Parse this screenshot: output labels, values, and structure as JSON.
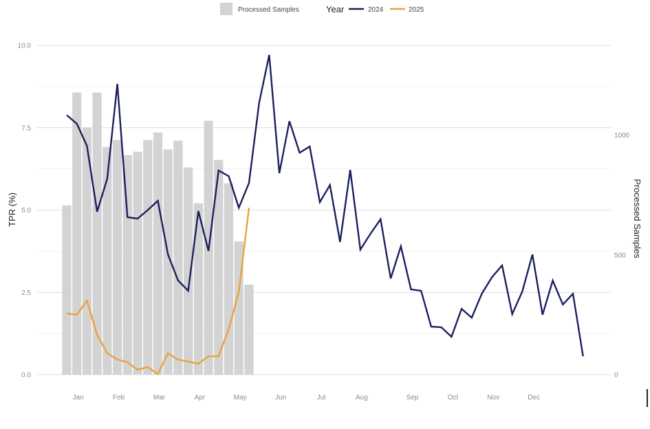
{
  "chart_data": {
    "type": "line",
    "title": "",
    "xlabel": "",
    "ylabel": "TPR (%)",
    "ylabel_right": "Processed Samples",
    "ylim": [
      0,
      10
    ],
    "ylim_right": [
      0,
      1375
    ],
    "yticks": [
      "0.0",
      "2.5",
      "5.0",
      "7.5",
      "10.0"
    ],
    "yticks_values": [
      0,
      2.5,
      5,
      7.5,
      10
    ],
    "yticks_right": [
      "0",
      "500",
      "1000"
    ],
    "yticks_right_values": [
      0,
      500,
      1000
    ],
    "grid": true,
    "legend": {
      "position": "top",
      "bar_label": "Processed Samples",
      "group_title": "Year",
      "entries": [
        {
          "name": "2024",
          "color": "#1b1f5e"
        },
        {
          "name": "2025",
          "color": "#e8a23c"
        }
      ]
    },
    "months": [
      "Jan",
      "Feb",
      "Mar",
      "Apr",
      "May",
      "Jun",
      "Jul",
      "Aug",
      "Sep",
      "Oct",
      "Nov",
      "Dec"
    ],
    "month_week_positions": [
      2,
      6,
      10,
      14,
      18,
      22,
      26,
      30,
      35,
      39,
      43,
      47
    ],
    "x_unit": "week",
    "bars": {
      "name": "Processed Samples",
      "axis": "right",
      "color": "#d3d3d3",
      "weeks": [
        1,
        2,
        3,
        4,
        5,
        6,
        7,
        8,
        9,
        10,
        11,
        12,
        13,
        14,
        15,
        16,
        17,
        18,
        19
      ],
      "values": [
        707,
        1178,
        1032,
        1178,
        951,
        980,
        917,
        931,
        980,
        1011,
        940,
        977,
        865,
        716,
        1060,
        897,
        799,
        557,
        376
      ]
    },
    "series": [
      {
        "name": "2024",
        "axis": "left",
        "color": "#1b1f5e",
        "weeks": [
          1,
          2,
          3,
          4,
          5,
          6,
          7,
          8,
          9,
          10,
          11,
          12,
          13,
          14,
          15,
          16,
          17,
          18,
          19,
          20,
          21,
          22,
          23,
          24,
          25,
          26,
          27,
          28,
          29,
          30,
          31,
          32,
          33,
          34,
          35,
          36,
          37,
          38,
          39,
          40,
          41,
          42,
          43,
          44,
          45,
          46,
          47,
          48,
          49,
          50,
          51,
          52
        ],
        "values": [
          7.88,
          7.62,
          6.95,
          4.95,
          5.95,
          8.83,
          4.78,
          4.74,
          5.0,
          5.28,
          3.65,
          2.86,
          2.55,
          4.97,
          3.76,
          6.2,
          6.03,
          5.07,
          5.82,
          8.25,
          9.71,
          6.12,
          7.7,
          6.74,
          6.93,
          5.24,
          5.76,
          4.03,
          6.22,
          3.8,
          4.28,
          4.72,
          2.92,
          3.9,
          2.59,
          2.55,
          1.46,
          1.44,
          1.15,
          2.0,
          1.73,
          2.46,
          2.96,
          3.32,
          1.84,
          2.53,
          3.65,
          1.82,
          2.86,
          2.13,
          2.46,
          0.56
        ]
      },
      {
        "name": "2025",
        "axis": "left",
        "color": "#e8a23c",
        "weeks": [
          1,
          2,
          3,
          4,
          5,
          6,
          7,
          8,
          9,
          10,
          11,
          12,
          13,
          14,
          15,
          16,
          17,
          18,
          19
        ],
        "values": [
          1.86,
          1.82,
          2.25,
          1.21,
          0.65,
          0.46,
          0.38,
          0.15,
          0.23,
          0.02,
          0.65,
          0.46,
          0.4,
          0.33,
          0.56,
          0.56,
          1.38,
          2.51,
          5.07
        ]
      }
    ]
  }
}
